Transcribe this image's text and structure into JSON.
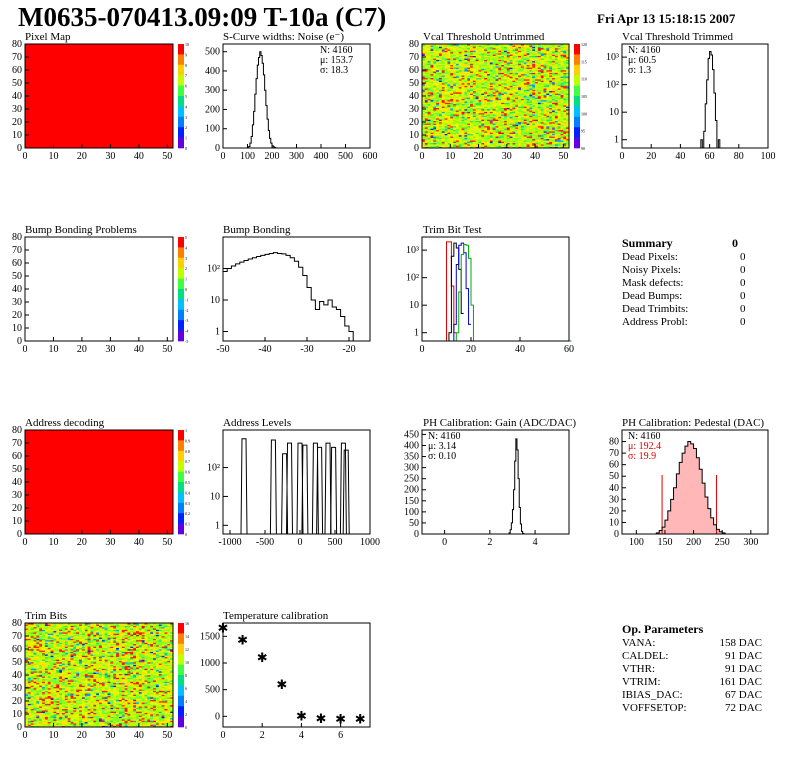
{
  "header": {
    "title": "M0635-070413.09:09 T-10a (C7)",
    "date": "Fri Apr 13 15:18:15 2007"
  },
  "panels": {
    "pixel_map": {
      "title": "Pixel Map"
    },
    "noise": {
      "title": "S-Curve widths: Noise (e⁻)"
    },
    "vcal_untrimmed": {
      "title": "Vcal Threshold Untrimmed"
    },
    "vcal_trimmed": {
      "title": "Vcal Threshold Trimmed"
    },
    "bump_problems": {
      "title": "Bump Bonding Problems"
    },
    "bump_bonding": {
      "title": "Bump Bonding"
    },
    "trim_bit_test": {
      "title": "Trim Bit Test"
    },
    "address_decoding": {
      "title": "Address decoding"
    },
    "address_levels": {
      "title": "Address Levels"
    },
    "ph_gain": {
      "title": "PH Calibration: Gain (ADC/DAC)"
    },
    "ph_pedestal": {
      "title": "PH Calibration: Pedestal (DAC)"
    },
    "trim_bits": {
      "title": "Trim Bits"
    },
    "temperature": {
      "title": "Temperature calibration"
    }
  },
  "summary": {
    "title": "Summary",
    "total": "0",
    "rows": [
      {
        "label": "Dead Pixels:",
        "value": "0"
      },
      {
        "label": "Noisy Pixels:",
        "value": "0"
      },
      {
        "label": "Mask defects:",
        "value": "0"
      },
      {
        "label": "Dead Bumps:",
        "value": "0"
      },
      {
        "label": "Dead Trimbits:",
        "value": "0"
      },
      {
        "label": "Address Probl:",
        "value": "0"
      }
    ]
  },
  "op_params": {
    "title": "Op. Parameters",
    "rows": [
      {
        "label": "VANA:",
        "value": "158 DAC"
      },
      {
        "label": "CALDEL:",
        "value": "91 DAC"
      },
      {
        "label": "VTHR:",
        "value": "91 DAC"
      },
      {
        "label": "VTRIM:",
        "value": "161 DAC"
      },
      {
        "label": "IBIAS_DAC:",
        "value": "67 DAC"
      },
      {
        "label": "VOFFSETOP:",
        "value": "72 DAC"
      }
    ]
  },
  "colors": {
    "red_map": "#ff0000",
    "palette": [
      "#ff0000",
      "#ff8000",
      "#ffd000",
      "#c0ff00",
      "#40ff40",
      "#00e080",
      "#00c0ff",
      "#0080ff",
      "#0020ff",
      "#6000e0"
    ],
    "trim_red": "#dd0000",
    "trim_blue": "#0000dd",
    "trim_green": "#00aa00",
    "pedestal_fill": "#ff6060"
  },
  "chart_data": [
    {
      "id": "pixel_map",
      "type": "heatmap",
      "title": "Pixel Map",
      "xlim": [
        0,
        52
      ],
      "ylim": [
        0,
        80
      ],
      "xticks": [
        0,
        10,
        20,
        30,
        40,
        50
      ],
      "yticks": [
        0,
        10,
        20,
        30,
        40,
        50,
        60,
        70,
        80
      ],
      "fill": "uniform-max",
      "colorbar": [
        "10",
        "9",
        "8",
        "7",
        "6",
        "5",
        "4",
        "3",
        "2",
        "1",
        "0"
      ]
    },
    {
      "id": "noise",
      "type": "histogram",
      "title": "S-Curve widths: Noise (e⁻)",
      "xlim": [
        0,
        600
      ],
      "ylim": [
        0,
        540
      ],
      "xticks": [
        0,
        100,
        200,
        300,
        400,
        500,
        600
      ],
      "yticks": [
        0,
        100,
        200,
        300,
        400,
        500
      ],
      "stats": [
        "N: 4160",
        "μ: 153.7",
        "σ: 18.3"
      ],
      "bins": [
        {
          "x": 100,
          "y": 0
        },
        {
          "x": 105,
          "y": 8
        },
        {
          "x": 110,
          "y": 25
        },
        {
          "x": 115,
          "y": 60
        },
        {
          "x": 120,
          "y": 120
        },
        {
          "x": 125,
          "y": 190
        },
        {
          "x": 130,
          "y": 280
        },
        {
          "x": 135,
          "y": 360
        },
        {
          "x": 140,
          "y": 430
        },
        {
          "x": 145,
          "y": 470
        },
        {
          "x": 150,
          "y": 500
        },
        {
          "x": 155,
          "y": 480
        },
        {
          "x": 160,
          "y": 440
        },
        {
          "x": 165,
          "y": 380
        },
        {
          "x": 170,
          "y": 300
        },
        {
          "x": 175,
          "y": 220
        },
        {
          "x": 180,
          "y": 150
        },
        {
          "x": 185,
          "y": 90
        },
        {
          "x": 190,
          "y": 50
        },
        {
          "x": 195,
          "y": 25
        },
        {
          "x": 200,
          "y": 12
        },
        {
          "x": 205,
          "y": 6
        },
        {
          "x": 210,
          "y": 3
        },
        {
          "x": 215,
          "y": 0
        }
      ]
    },
    {
      "id": "vcal_untrimmed",
      "type": "heatmap",
      "title": "Vcal Threshold Untrimmed",
      "xlim": [
        0,
        52
      ],
      "ylim": [
        0,
        80
      ],
      "xticks": [
        0,
        10,
        20,
        30,
        40,
        50
      ],
      "yticks": [
        0,
        10,
        20,
        30,
        40,
        50,
        60,
        70,
        80
      ],
      "fill": "noise",
      "colorbar": [
        "120",
        "115",
        "110",
        "105",
        "100",
        "95",
        "90"
      ]
    },
    {
      "id": "vcal_trimmed",
      "type": "histogram",
      "title": "Vcal Threshold Trimmed",
      "log": true,
      "xlim": [
        0,
        100
      ],
      "ylim": [
        0.5,
        3000
      ],
      "xticks": [
        0,
        20,
        40,
        60,
        80,
        100
      ],
      "yticklabels": [
        "1",
        "10",
        "10²",
        "10³"
      ],
      "stats": [
        "N: 4160",
        "μ: 60.5",
        "σ: 1.3"
      ],
      "bins": [
        {
          "x": 54,
          "y": 1
        },
        {
          "x": 55,
          "y": 0
        },
        {
          "x": 56,
          "y": 2
        },
        {
          "x": 57,
          "y": 20
        },
        {
          "x": 58,
          "y": 150
        },
        {
          "x": 59,
          "y": 900
        },
        {
          "x": 60,
          "y": 1600
        },
        {
          "x": 61,
          "y": 1200
        },
        {
          "x": 62,
          "y": 350
        },
        {
          "x": 63,
          "y": 50
        },
        {
          "x": 64,
          "y": 5
        },
        {
          "x": 65,
          "y": 0
        },
        {
          "x": 66,
          "y": 1
        },
        {
          "x": 67,
          "y": 0
        }
      ]
    },
    {
      "id": "bump_problems",
      "type": "heatmap",
      "title": "Bump Bonding Problems",
      "xlim": [
        0,
        52
      ],
      "ylim": [
        0,
        80
      ],
      "xticks": [
        0,
        10,
        20,
        30,
        40,
        50
      ],
      "yticks": [
        0,
        10,
        20,
        30,
        40,
        50,
        60,
        70,
        80
      ],
      "fill": "empty",
      "colorbar": [
        "5",
        "4",
        "3",
        "2",
        "1",
        "0",
        "-1",
        "-2",
        "-3",
        "-4",
        "-5"
      ]
    },
    {
      "id": "bump_bonding",
      "type": "histogram",
      "title": "Bump Bonding",
      "log": true,
      "xlim": [
        -50,
        -15
      ],
      "ylim": [
        0.5,
        1000
      ],
      "xticks": [
        -50,
        -40,
        -30,
        -20
      ],
      "yticklabels": [
        "1",
        "10",
        "10²"
      ],
      "bins": [
        {
          "x": -50,
          "y": 80
        },
        {
          "x": -49,
          "y": 100
        },
        {
          "x": -48,
          "y": 120
        },
        {
          "x": -47,
          "y": 140
        },
        {
          "x": -46,
          "y": 160
        },
        {
          "x": -45,
          "y": 180
        },
        {
          "x": -44,
          "y": 200
        },
        {
          "x": -43,
          "y": 220
        },
        {
          "x": -42,
          "y": 240
        },
        {
          "x": -41,
          "y": 260
        },
        {
          "x": -40,
          "y": 280
        },
        {
          "x": -39,
          "y": 300
        },
        {
          "x": -38,
          "y": 320
        },
        {
          "x": -37,
          "y": 300
        },
        {
          "x": -36,
          "y": 290
        },
        {
          "x": -35,
          "y": 260
        },
        {
          "x": -34,
          "y": 220
        },
        {
          "x": -33,
          "y": 170
        },
        {
          "x": -32,
          "y": 110
        },
        {
          "x": -31,
          "y": 60
        },
        {
          "x": -30,
          "y": 25
        },
        {
          "x": -29,
          "y": 10
        },
        {
          "x": -28,
          "y": 5
        },
        {
          "x": -27,
          "y": 9
        },
        {
          "x": -26,
          "y": 7
        },
        {
          "x": -25,
          "y": 10
        },
        {
          "x": -24,
          "y": 6
        },
        {
          "x": -23,
          "y": 5
        },
        {
          "x": -22,
          "y": 3
        },
        {
          "x": -21,
          "y": 1.5
        },
        {
          "x": -20,
          "y": 1
        },
        {
          "x": -19,
          "y": 0.5
        }
      ]
    },
    {
      "id": "trim_bit_test",
      "type": "histogram",
      "title": "Trim Bit Test",
      "log": true,
      "xlim": [
        0,
        60
      ],
      "ylim": [
        0.5,
        3000
      ],
      "xticks": [
        0,
        20,
        40,
        60
      ],
      "yticklabels": [
        "1",
        "10",
        "10²",
        "10³"
      ],
      "series": [
        {
          "name": "red",
          "bins": [
            {
              "x": 9,
              "y": 0
            },
            {
              "x": 10,
              "y": 2000
            },
            {
              "x": 11,
              "y": 2000
            },
            {
              "x": 12,
              "y": 50
            },
            {
              "x": 13,
              "y": 1
            }
          ]
        },
        {
          "name": "black",
          "bins": [
            {
              "x": 11,
              "y": 1
            },
            {
              "x": 12,
              "y": 600
            },
            {
              "x": 13,
              "y": 1800
            },
            {
              "x": 14,
              "y": 1200
            },
            {
              "x": 15,
              "y": 200
            },
            {
              "x": 16,
              "y": 5
            }
          ]
        },
        {
          "name": "blue",
          "bins": [
            {
              "x": 13,
              "y": 2
            },
            {
              "x": 14,
              "y": 300
            },
            {
              "x": 15,
              "y": 1500
            },
            {
              "x": 16,
              "y": 1800
            },
            {
              "x": 17,
              "y": 800
            },
            {
              "x": 18,
              "y": 40
            },
            {
              "x": 19,
              "y": 2
            }
          ]
        },
        {
          "name": "green",
          "bins": [
            {
              "x": 14,
              "y": 1
            },
            {
              "x": 15,
              "y": 30
            },
            {
              "x": 16,
              "y": 700
            },
            {
              "x": 17,
              "y": 1600
            },
            {
              "x": 18,
              "y": 1500
            },
            {
              "x": 19,
              "y": 500
            },
            {
              "x": 20,
              "y": 10
            },
            {
              "x": 21,
              "y": 0.5
            },
            {
              "x": 60,
              "y": 0.5
            }
          ]
        }
      ]
    },
    {
      "id": "address_decoding",
      "type": "heatmap",
      "title": "Address decoding",
      "xlim": [
        0,
        52
      ],
      "ylim": [
        0,
        80
      ],
      "xticks": [
        0,
        10,
        20,
        30,
        40,
        50
      ],
      "yticks": [
        0,
        10,
        20,
        30,
        40,
        50,
        60,
        70,
        80
      ],
      "fill": "uniform-max",
      "colorbar": [
        "1",
        "0.9",
        "0.8",
        "0.7",
        "0.6",
        "0.5",
        "0.4",
        "0.3",
        "0.2",
        "0.1",
        "0"
      ]
    },
    {
      "id": "address_levels",
      "type": "histogram",
      "title": "Address Levels",
      "log": true,
      "xlim": [
        -1100,
        1000
      ],
      "ylim": [
        0.5,
        2000
      ],
      "xticks": [
        -1000,
        -500,
        0,
        500,
        1000
      ],
      "yticklabels": [
        "1",
        "10",
        "10²"
      ],
      "peaks": [
        {
          "x": -800,
          "y": 1000
        },
        {
          "x": -380,
          "y": 900
        },
        {
          "x": -220,
          "y": 300
        },
        {
          "x": -150,
          "y": 700
        },
        {
          "x": 0,
          "y": 700
        },
        {
          "x": 70,
          "y": 600
        },
        {
          "x": 220,
          "y": 700
        },
        {
          "x": 280,
          "y": 500
        },
        {
          "x": 400,
          "y": 700
        },
        {
          "x": 480,
          "y": 500
        },
        {
          "x": 620,
          "y": 700
        },
        {
          "x": 660,
          "y": 400
        }
      ]
    },
    {
      "id": "ph_gain",
      "type": "histogram",
      "title": "PH Calibration: Gain (ADC/DAC)",
      "xlim": [
        -1,
        5.5
      ],
      "ylim": [
        0,
        470
      ],
      "xticks": [
        0,
        2,
        4
      ],
      "yticks": [
        0,
        50,
        100,
        150,
        200,
        250,
        300,
        350,
        400,
        450
      ],
      "stats": [
        "N: 4160",
        "μ: 3.14",
        "σ: 0.10"
      ],
      "bins": [
        {
          "x": 2.8,
          "y": 0
        },
        {
          "x": 2.85,
          "y": 5
        },
        {
          "x": 2.9,
          "y": 20
        },
        {
          "x": 2.95,
          "y": 50
        },
        {
          "x": 3.0,
          "y": 110
        },
        {
          "x": 3.05,
          "y": 200
        },
        {
          "x": 3.1,
          "y": 330
        },
        {
          "x": 3.15,
          "y": 430
        },
        {
          "x": 3.2,
          "y": 380
        },
        {
          "x": 3.25,
          "y": 250
        },
        {
          "x": 3.3,
          "y": 120
        },
        {
          "x": 3.35,
          "y": 45
        },
        {
          "x": 3.4,
          "y": 12
        },
        {
          "x": 3.45,
          "y": 3
        },
        {
          "x": 3.5,
          "y": 0
        }
      ]
    },
    {
      "id": "ph_pedestal",
      "type": "histogram",
      "title": "PH Calibration: Pedestal (DAC)",
      "xlim": [
        75,
        330
      ],
      "ylim": [
        0,
        90
      ],
      "xticks": [
        100,
        150,
        200,
        250,
        300
      ],
      "yticks": [
        0,
        10,
        20,
        30,
        40,
        50,
        60,
        70,
        80
      ],
      "stats": [
        "N: 4160",
        "μ: 192.4",
        "σ: 19.9"
      ],
      "cut_lines": [
        145,
        240
      ],
      "bins": [
        {
          "x": 130,
          "y": 0
        },
        {
          "x": 135,
          "y": 1
        },
        {
          "x": 140,
          "y": 3
        },
        {
          "x": 145,
          "y": 6
        },
        {
          "x": 150,
          "y": 12
        },
        {
          "x": 155,
          "y": 20
        },
        {
          "x": 160,
          "y": 30
        },
        {
          "x": 165,
          "y": 40
        },
        {
          "x": 170,
          "y": 52
        },
        {
          "x": 175,
          "y": 62
        },
        {
          "x": 180,
          "y": 70
        },
        {
          "x": 185,
          "y": 76
        },
        {
          "x": 190,
          "y": 80
        },
        {
          "x": 195,
          "y": 78
        },
        {
          "x": 200,
          "y": 74
        },
        {
          "x": 205,
          "y": 66
        },
        {
          "x": 210,
          "y": 56
        },
        {
          "x": 215,
          "y": 44
        },
        {
          "x": 220,
          "y": 32
        },
        {
          "x": 225,
          "y": 22
        },
        {
          "x": 230,
          "y": 14
        },
        {
          "x": 235,
          "y": 8
        },
        {
          "x": 240,
          "y": 4
        },
        {
          "x": 245,
          "y": 2
        },
        {
          "x": 250,
          "y": 1
        },
        {
          "x": 255,
          "y": 0
        }
      ]
    },
    {
      "id": "trim_bits",
      "type": "heatmap",
      "title": "Trim Bits",
      "xlim": [
        0,
        52
      ],
      "ylim": [
        0,
        80
      ],
      "xticks": [
        0,
        10,
        20,
        30,
        40,
        50
      ],
      "yticks": [
        0,
        10,
        20,
        30,
        40,
        50,
        60,
        70,
        80
      ],
      "fill": "noise",
      "colorbar": [
        "16",
        "14",
        "12",
        "10",
        "8",
        "6",
        "4",
        "2",
        "0"
      ]
    },
    {
      "id": "temperature",
      "type": "scatter",
      "title": "Temperature calibration",
      "xlim": [
        0,
        7.5
      ],
      "ylim": [
        -200,
        1750
      ],
      "xticks": [
        0,
        2,
        4,
        6
      ],
      "yticks": [
        0,
        500,
        1000,
        1500
      ],
      "points": [
        {
          "x": 0,
          "y": 1670
        },
        {
          "x": 1,
          "y": 1440
        },
        {
          "x": 2,
          "y": 1110
        },
        {
          "x": 3,
          "y": 610
        },
        {
          "x": 4,
          "y": 15
        },
        {
          "x": 5,
          "y": -30
        },
        {
          "x": 6,
          "y": -40
        },
        {
          "x": 7,
          "y": -40
        }
      ]
    }
  ]
}
